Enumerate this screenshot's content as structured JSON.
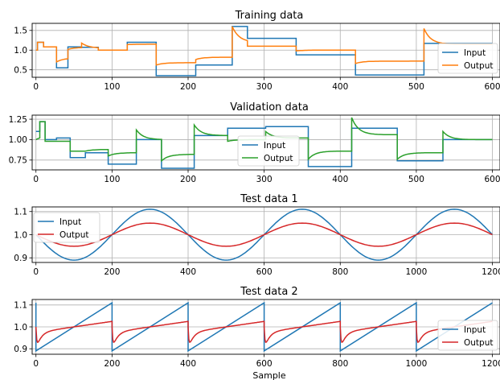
{
  "xlabel": "Sample",
  "chart_data": [
    {
      "type": "line",
      "title": "Training data",
      "xlim": [
        -5,
        610
      ],
      "ylim": [
        0.31,
        1.68
      ],
      "xticks": [
        0,
        100,
        200,
        300,
        400,
        500,
        600
      ],
      "yticks": [
        0.5,
        1.0,
        1.5
      ],
      "ytick_labels": [
        "0.5",
        "1.0",
        "1.5"
      ],
      "grid": true,
      "legend_position": "lower-right",
      "series": [
        {
          "name": "Input",
          "color": "#1f77b4",
          "kind": "step",
          "steps": [
            [
              0,
              1.0
            ],
            [
              2,
              1.2
            ],
            [
              10,
              1.08
            ],
            [
              27,
              0.55
            ],
            [
              42,
              1.08
            ],
            [
              60,
              1.07
            ],
            [
              82,
              1.0
            ],
            [
              120,
              1.2
            ],
            [
              158,
              0.35
            ],
            [
              210,
              0.62
            ],
            [
              258,
              1.6
            ],
            [
              278,
              1.3
            ],
            [
              342,
              0.88
            ],
            [
              420,
              0.37
            ],
            [
              510,
              1.17
            ],
            [
              600,
              1.17
            ]
          ]
        },
        {
          "name": "Output",
          "color": "#ff7f0e",
          "kind": "response",
          "initial": 1.0,
          "changes": [
            [
              0,
              1.0
            ],
            [
              2,
              1.2
            ],
            [
              10,
              1.08
            ],
            [
              27,
              0.7
            ],
            [
              42,
              1.02
            ],
            [
              60,
              1.18
            ],
            [
              82,
              1.0
            ],
            [
              120,
              1.14
            ],
            [
              158,
              0.62
            ],
            [
              210,
              0.76
            ],
            [
              258,
              1.6
            ],
            [
              278,
              1.1
            ],
            [
              342,
              0.98
            ],
            [
              420,
              0.66
            ],
            [
              510,
              1.55
            ]
          ],
          "finals": [
            1.0,
            1.2,
            1.08,
            0.8,
            1.07,
            1.05,
            1.0,
            1.15,
            0.68,
            0.82,
            1.2,
            1.1,
            1.0,
            0.72,
            1.15
          ]
        }
      ]
    },
    {
      "type": "line",
      "title": "Validation data",
      "xlim": [
        -5,
        610
      ],
      "ylim": [
        0.63,
        1.3
      ],
      "xticks": [
        0,
        100,
        200,
        300,
        400,
        500,
        600
      ],
      "yticks": [
        0.75,
        1.0,
        1.25
      ],
      "ytick_labels": [
        "0.75",
        "1.00",
        "1.25"
      ],
      "grid": true,
      "legend_position": "center",
      "series": [
        {
          "name": "Input",
          "color": "#1f77b4",
          "kind": "step",
          "steps": [
            [
              0,
              1.1
            ],
            [
              5,
              1.22
            ],
            [
              12,
              1.0
            ],
            [
              27,
              1.02
            ],
            [
              45,
              0.78
            ],
            [
              65,
              0.84
            ],
            [
              95,
              0.7
            ],
            [
              132,
              1.0
            ],
            [
              165,
              0.65
            ],
            [
              208,
              1.05
            ],
            [
              252,
              1.14
            ],
            [
              302,
              1.16
            ],
            [
              358,
              0.67
            ],
            [
              415,
              1.14
            ],
            [
              475,
              0.74
            ],
            [
              535,
              1.0
            ],
            [
              600,
              1.0
            ]
          ]
        },
        {
          "name": "Output",
          "color": "#2ca02c",
          "kind": "response",
          "initial": 1.0,
          "changes": [
            [
              0,
              1.0
            ],
            [
              5,
              1.22
            ],
            [
              12,
              0.98
            ],
            [
              27,
              0.98
            ],
            [
              45,
              0.86
            ],
            [
              65,
              0.86
            ],
            [
              95,
              0.8
            ],
            [
              132,
              1.12
            ],
            [
              165,
              0.74
            ],
            [
              208,
              1.18
            ],
            [
              252,
              0.98
            ],
            [
              302,
              1.1
            ],
            [
              358,
              0.76
            ],
            [
              415,
              1.27
            ],
            [
              475,
              0.76
            ],
            [
              535,
              1.1
            ]
          ],
          "finals": [
            1.05,
            1.22,
            0.98,
            0.98,
            0.86,
            0.88,
            0.84,
            1.0,
            0.82,
            1.05,
            1.0,
            1.02,
            0.86,
            1.06,
            0.84,
            1.0
          ]
        }
      ]
    },
    {
      "type": "line",
      "title": "Test data 1",
      "xlim": [
        -10,
        1220
      ],
      "ylim": [
        0.88,
        1.12
      ],
      "xticks": [
        0,
        200,
        400,
        600,
        800,
        1000,
        1200
      ],
      "yticks": [
        0.9,
        1.0,
        1.1
      ],
      "ytick_labels": [
        "0.9",
        "1.0",
        "1.1"
      ],
      "grid": true,
      "legend_position": "upper-left",
      "series": [
        {
          "name": "Input",
          "color": "#1f77b4",
          "kind": "sine",
          "center": 1.0,
          "amplitude": 0.11,
          "period": 400,
          "phase_x": 300,
          "phase_dir": -1,
          "x_range": [
            0,
            1200
          ]
        },
        {
          "name": "Output",
          "color": "#d62728",
          "kind": "sine",
          "center": 1.0,
          "amplitude": 0.05,
          "period": 400,
          "phase_x": 300,
          "phase_dir": -1,
          "x_range": [
            0,
            1200
          ]
        }
      ]
    },
    {
      "type": "line",
      "title": "Test data 2",
      "xlim": [
        -10,
        1220
      ],
      "ylim": [
        0.875,
        1.125
      ],
      "xticks": [
        0,
        200,
        400,
        600,
        800,
        1000,
        1200
      ],
      "yticks": [
        0.9,
        1.0,
        1.1
      ],
      "ytick_labels": [
        "0.9",
        "1.0",
        "1.1"
      ],
      "grid": true,
      "legend_position": "lower-right",
      "series": [
        {
          "name": "Input",
          "color": "#1f77b4",
          "kind": "sawtooth",
          "low": 0.89,
          "high": 1.11,
          "period": 200,
          "x_range": [
            0,
            1200
          ]
        },
        {
          "name": "Output",
          "color": "#d62728",
          "kind": "saw_response",
          "low": 0.89,
          "high": 1.11,
          "period": 200,
          "x_range": [
            0,
            1200
          ]
        }
      ]
    }
  ]
}
